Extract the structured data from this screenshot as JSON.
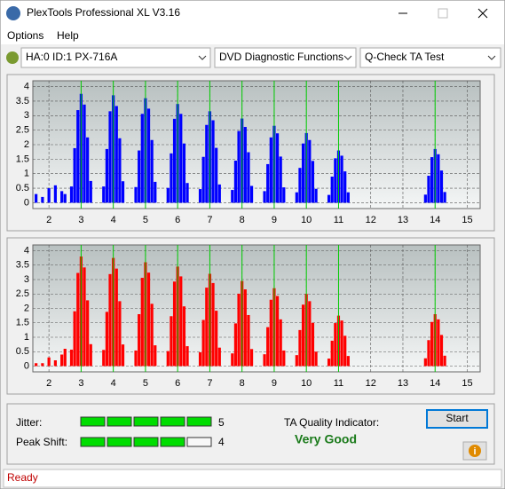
{
  "window": {
    "title": "PlexTools Professional XL V3.16"
  },
  "menu": [
    "Options",
    "Help"
  ],
  "toolbar": [
    "HA:0 ID:1  PX-716A",
    "DVD Diagnostic Functions",
    "Q-Check TA Test"
  ],
  "chart_data": [
    {
      "type": "bar",
      "color": "#0000ff",
      "x": [
        1.6,
        1.8,
        2,
        2.2,
        2.4,
        2.5,
        2.7,
        2.8,
        2.9,
        3,
        3.1,
        3.2,
        3.3,
        3.7,
        3.8,
        3.9,
        4,
        4.1,
        4.2,
        4.3,
        4.7,
        4.8,
        4.9,
        5,
        5.1,
        5.2,
        5.3,
        5.7,
        5.8,
        5.9,
        6,
        6.1,
        6.2,
        6.3,
        6.7,
        6.8,
        6.9,
        7,
        7.1,
        7.2,
        7.3,
        7.7,
        7.8,
        7.9,
        8,
        8.1,
        8.2,
        8.3,
        8.7,
        8.8,
        8.9,
        9,
        9.1,
        9.2,
        9.3,
        9.7,
        9.8,
        9.9,
        10,
        10.1,
        10.2,
        10.3,
        10.7,
        10.8,
        10.9,
        11,
        11.1,
        11.2,
        11.3,
        13.7,
        13.8,
        13.9,
        14,
        14.1,
        14.2,
        14.3
      ],
      "values": [
        0.3,
        0.2,
        0.5,
        0.6,
        0.4,
        0.3,
        0.56,
        1.88,
        3.19,
        3.75,
        3.38,
        2.25,
        0.75,
        0.56,
        1.85,
        3.15,
        3.7,
        3.33,
        2.22,
        0.74,
        0.54,
        1.8,
        3.06,
        3.6,
        3.24,
        2.16,
        0.72,
        0.51,
        1.7,
        2.89,
        3.4,
        3.06,
        2.04,
        0.68,
        0.47,
        1.58,
        2.68,
        3.15,
        2.84,
        1.89,
        0.63,
        0.44,
        1.45,
        2.47,
        2.9,
        2.61,
        1.74,
        0.58,
        0.4,
        1.33,
        2.25,
        2.65,
        2.39,
        1.59,
        0.53,
        0.36,
        1.2,
        2.04,
        2.4,
        2.16,
        1.44,
        0.48,
        0.27,
        0.9,
        1.53,
        1.8,
        1.62,
        1.08,
        0.36,
        0.28,
        0.93,
        1.57,
        1.85,
        1.67,
        1.11,
        0.37
      ],
      "xlim": [
        1.5,
        15.4
      ],
      "ylim": [
        -0.2,
        4.2
      ],
      "xticks": [
        2,
        3,
        4,
        5,
        6,
        7,
        8,
        9,
        10,
        11,
        12,
        13,
        14,
        15
      ],
      "yticks": [
        0,
        0.5,
        1,
        1.5,
        2,
        2.5,
        3,
        3.5,
        4
      ],
      "reference_lines": [
        3,
        4,
        5,
        6,
        7,
        8,
        9,
        10,
        11,
        14
      ],
      "reference_color": "#00cc00",
      "grid": true
    },
    {
      "type": "bar",
      "color": "#ff0000",
      "x": [
        1.6,
        1.8,
        2,
        2.2,
        2.4,
        2.5,
        2.7,
        2.8,
        2.9,
        3,
        3.1,
        3.2,
        3.3,
        3.7,
        3.8,
        3.9,
        4,
        4.1,
        4.2,
        4.3,
        4.7,
        4.8,
        4.9,
        5,
        5.1,
        5.2,
        5.3,
        5.7,
        5.8,
        5.9,
        6,
        6.1,
        6.2,
        6.3,
        6.7,
        6.8,
        6.9,
        7,
        7.1,
        7.2,
        7.3,
        7.7,
        7.8,
        7.9,
        8,
        8.1,
        8.2,
        8.3,
        8.7,
        8.8,
        8.9,
        9,
        9.1,
        9.2,
        9.3,
        9.7,
        9.8,
        9.9,
        10,
        10.1,
        10.2,
        10.3,
        10.7,
        10.8,
        10.9,
        11,
        11.1,
        11.2,
        11.3,
        13.7,
        13.8,
        13.9,
        14,
        14.1,
        14.2,
        14.3
      ],
      "values": [
        0.1,
        0.1,
        0.3,
        0.2,
        0.4,
        0.6,
        0.57,
        1.9,
        3.23,
        3.8,
        3.42,
        2.28,
        0.76,
        0.56,
        1.88,
        3.19,
        3.75,
        3.38,
        2.25,
        0.75,
        0.54,
        1.8,
        3.06,
        3.6,
        3.24,
        2.16,
        0.72,
        0.52,
        1.73,
        2.93,
        3.45,
        3.11,
        2.07,
        0.69,
        0.48,
        1.6,
        2.72,
        3.2,
        2.88,
        1.92,
        0.64,
        0.44,
        1.48,
        2.51,
        2.95,
        2.66,
        1.77,
        0.59,
        0.41,
        1.35,
        2.3,
        2.7,
        2.43,
        1.62,
        0.54,
        0.38,
        1.25,
        2.13,
        2.5,
        2.25,
        1.5,
        0.5,
        0.26,
        0.88,
        1.49,
        1.75,
        1.58,
        1.05,
        0.35,
        0.27,
        0.9,
        1.53,
        1.8,
        1.62,
        1.08,
        0.36
      ],
      "xlim": [
        1.5,
        15.4
      ],
      "ylim": [
        -0.2,
        4.2
      ],
      "xticks": [
        2,
        3,
        4,
        5,
        6,
        7,
        8,
        9,
        10,
        11,
        12,
        13,
        14,
        15
      ],
      "yticks": [
        0,
        0.5,
        1,
        1.5,
        2,
        2.5,
        3,
        3.5,
        4
      ],
      "reference_lines": [
        3,
        4,
        5,
        6,
        7,
        8,
        9,
        10,
        11,
        14
      ],
      "reference_color": "#00cc00",
      "grid": true
    }
  ],
  "quality": {
    "jitter": {
      "label": "Jitter:",
      "value": 5
    },
    "peak_shift": {
      "label": "Peak Shift:",
      "value": 4
    },
    "indicator_label": "TA Quality Indicator:",
    "rating": "Very Good",
    "button": "Start"
  },
  "status": "Ready"
}
